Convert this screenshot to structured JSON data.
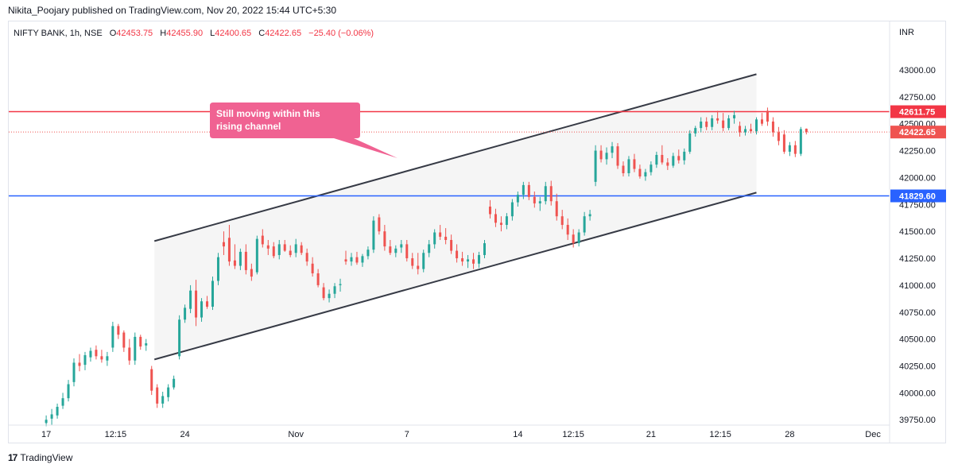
{
  "header": {
    "publish_line": "Nikita_Poojary published on TradingView.com, Nov 20, 2022 15:44 UTC+5:30"
  },
  "legend": {
    "symbol": "NIFTY BANK, 1h, NSE",
    "open_label": "O",
    "open": "42453.75",
    "high_label": "H",
    "high": "42455.90",
    "low_label": "L",
    "low": "42400.65",
    "close_label": "C",
    "close": "42422.65",
    "change": "−25.40 (−0.06%)"
  },
  "footer": {
    "brand": "TradingView",
    "logo_glyph": "17"
  },
  "annotation": {
    "text_lines": [
      "Still moving within this",
      "rising channel"
    ],
    "color": "#f06292"
  },
  "colors": {
    "up": "#26a69a",
    "down": "#ef5350",
    "red_level": "#f23645",
    "blue_level": "#2962ff",
    "channel": "#363a45",
    "channel_fill": "#f5f5f5"
  },
  "chart_data": {
    "type": "candlestick",
    "currency": "INR",
    "y_ticks": [
      43000,
      42750,
      42500,
      42250,
      42000,
      41750,
      41500,
      41250,
      41000,
      40750,
      40500,
      40250,
      40000,
      39750
    ],
    "y_tick_labels": [
      "43000.00",
      "42750.00",
      "42500.00",
      "42250.00",
      "42000.00",
      "41750.00",
      "41500.00",
      "41250.00",
      "41000.00",
      "40750.00",
      "40500.00",
      "40250.00",
      "40000.00",
      "39750.00"
    ],
    "ylim": [
      39700,
      43450
    ],
    "x_ticks": [
      {
        "label": "17",
        "t": 6
      },
      {
        "label": "12:15",
        "t": 31
      },
      {
        "label": "24",
        "t": 56
      },
      {
        "label": "Nov",
        "t": 96
      },
      {
        "label": "7",
        "t": 136
      },
      {
        "label": "14",
        "t": 176
      },
      {
        "label": "12:15",
        "t": 196
      },
      {
        "label": "21",
        "t": 224
      },
      {
        "label": "12:15",
        "t": 249
      },
      {
        "label": "28",
        "t": 274
      },
      {
        "label": "Dec",
        "t": 304
      }
    ],
    "xlim": [
      -7.5,
      310
    ],
    "horizontal_levels": [
      {
        "value": 42611.75,
        "label": "42611.75",
        "color": "red"
      },
      {
        "value": 41829.6,
        "label": "41829.60",
        "color": "blue"
      }
    ],
    "last_price": {
      "value": 42422.65,
      "label": "42422.65"
    },
    "channel": {
      "upper": [
        {
          "t": 45,
          "v": 41410
        },
        {
          "t": 262,
          "v": 42960
        }
      ],
      "lower": [
        {
          "t": 45,
          "v": 40310
        },
        {
          "t": 262,
          "v": 41860
        }
      ]
    },
    "candles": [
      {
        "t": 6,
        "o": 39720,
        "h": 39790,
        "l": 39690,
        "c": 39750
      },
      {
        "t": 8,
        "o": 39760,
        "h": 39850,
        "l": 39700,
        "c": 39800
      },
      {
        "t": 10,
        "o": 39790,
        "h": 39900,
        "l": 39760,
        "c": 39870
      },
      {
        "t": 12,
        "o": 39880,
        "h": 40000,
        "l": 39850,
        "c": 39950
      },
      {
        "t": 14,
        "o": 39950,
        "h": 40120,
        "l": 39920,
        "c": 40080
      },
      {
        "t": 16,
        "o": 40100,
        "h": 40320,
        "l": 40060,
        "c": 40280
      },
      {
        "t": 18,
        "o": 40280,
        "h": 40360,
        "l": 40200,
        "c": 40250
      },
      {
        "t": 20,
        "o": 40260,
        "h": 40380,
        "l": 40210,
        "c": 40350
      },
      {
        "t": 22,
        "o": 40330,
        "h": 40420,
        "l": 40290,
        "c": 40390
      },
      {
        "t": 24,
        "o": 40400,
        "h": 40440,
        "l": 40310,
        "c": 40340
      },
      {
        "t": 26,
        "o": 40340,
        "h": 40400,
        "l": 40280,
        "c": 40310
      },
      {
        "t": 28,
        "o": 40300,
        "h": 40380,
        "l": 40250,
        "c": 40340
      },
      {
        "t": 30,
        "o": 40420,
        "h": 40660,
        "l": 40380,
        "c": 40620
      },
      {
        "t": 32,
        "o": 40620,
        "h": 40640,
        "l": 40500,
        "c": 40540
      },
      {
        "t": 34,
        "o": 40560,
        "h": 40580,
        "l": 40380,
        "c": 40420
      },
      {
        "t": 36,
        "o": 40420,
        "h": 40500,
        "l": 40260,
        "c": 40300
      },
      {
        "t": 38,
        "o": 40300,
        "h": 40560,
        "l": 40260,
        "c": 40520
      },
      {
        "t": 40,
        "o": 40520,
        "h": 40540,
        "l": 40400,
        "c": 40430
      },
      {
        "t": 42,
        "o": 40440,
        "h": 40500,
        "l": 40390,
        "c": 40460
      },
      {
        "t": 44,
        "o": 40220,
        "h": 40250,
        "l": 39980,
        "c": 40020
      },
      {
        "t": 46,
        "o": 40050,
        "h": 40080,
        "l": 39860,
        "c": 39900
      },
      {
        "t": 48,
        "o": 39900,
        "h": 40010,
        "l": 39860,
        "c": 39970
      },
      {
        "t": 50,
        "o": 39960,
        "h": 40080,
        "l": 39920,
        "c": 40050
      },
      {
        "t": 52,
        "o": 40050,
        "h": 40160,
        "l": 40030,
        "c": 40130
      },
      {
        "t": 54,
        "o": 40340,
        "h": 40720,
        "l": 40310,
        "c": 40680
      },
      {
        "t": 56,
        "o": 40680,
        "h": 40820,
        "l": 40650,
        "c": 40790
      },
      {
        "t": 58,
        "o": 40780,
        "h": 41000,
        "l": 40740,
        "c": 40950
      },
      {
        "t": 60,
        "o": 40950,
        "h": 41050,
        "l": 40620,
        "c": 40700
      },
      {
        "t": 62,
        "o": 40700,
        "h": 40880,
        "l": 40660,
        "c": 40850
      },
      {
        "t": 64,
        "o": 40850,
        "h": 40900,
        "l": 40780,
        "c": 40800
      },
      {
        "t": 66,
        "o": 40800,
        "h": 41080,
        "l": 40770,
        "c": 41040
      },
      {
        "t": 68,
        "o": 41040,
        "h": 41300,
        "l": 41000,
        "c": 41260
      },
      {
        "t": 70,
        "o": 41400,
        "h": 41500,
        "l": 41280,
        "c": 41360
      },
      {
        "t": 72,
        "o": 41440,
        "h": 41560,
        "l": 41180,
        "c": 41220
      },
      {
        "t": 74,
        "o": 41230,
        "h": 41380,
        "l": 41150,
        "c": 41180
      },
      {
        "t": 76,
        "o": 41180,
        "h": 41340,
        "l": 41140,
        "c": 41310
      },
      {
        "t": 78,
        "o": 41310,
        "h": 41380,
        "l": 41100,
        "c": 41140
      },
      {
        "t": 80,
        "o": 41150,
        "h": 41200,
        "l": 41040,
        "c": 41080
      },
      {
        "t": 82,
        "o": 41120,
        "h": 41460,
        "l": 41100,
        "c": 41430
      },
      {
        "t": 84,
        "o": 41460,
        "h": 41520,
        "l": 41350,
        "c": 41380
      },
      {
        "t": 86,
        "o": 41370,
        "h": 41420,
        "l": 41280,
        "c": 41340
      },
      {
        "t": 88,
        "o": 41360,
        "h": 41400,
        "l": 41250,
        "c": 41270
      },
      {
        "t": 90,
        "o": 41280,
        "h": 41420,
        "l": 41240,
        "c": 41380
      },
      {
        "t": 92,
        "o": 41380,
        "h": 41420,
        "l": 41310,
        "c": 41320
      },
      {
        "t": 94,
        "o": 41320,
        "h": 41370,
        "l": 41260,
        "c": 41280
      },
      {
        "t": 96,
        "o": 41300,
        "h": 41430,
        "l": 41260,
        "c": 41380
      },
      {
        "t": 98,
        "o": 41370,
        "h": 41400,
        "l": 41280,
        "c": 41300
      },
      {
        "t": 100,
        "o": 41300,
        "h": 41340,
        "l": 41180,
        "c": 41220
      },
      {
        "t": 102,
        "o": 41200,
        "h": 41260,
        "l": 41080,
        "c": 41110
      },
      {
        "t": 104,
        "o": 41110,
        "h": 41150,
        "l": 40980,
        "c": 41000
      },
      {
        "t": 106,
        "o": 40980,
        "h": 41020,
        "l": 40860,
        "c": 40880
      },
      {
        "t": 108,
        "o": 40880,
        "h": 40960,
        "l": 40840,
        "c": 40920
      },
      {
        "t": 110,
        "o": 40920,
        "h": 41020,
        "l": 40880,
        "c": 40990
      },
      {
        "t": 112,
        "o": 41000,
        "h": 41060,
        "l": 40940,
        "c": 41010
      },
      {
        "t": 114,
        "o": 41240,
        "h": 41320,
        "l": 41190,
        "c": 41220
      },
      {
        "t": 116,
        "o": 41220,
        "h": 41300,
        "l": 41180,
        "c": 41260
      },
      {
        "t": 118,
        "o": 41260,
        "h": 41310,
        "l": 41190,
        "c": 41210
      },
      {
        "t": 120,
        "o": 41210,
        "h": 41290,
        "l": 41170,
        "c": 41270
      },
      {
        "t": 122,
        "o": 41270,
        "h": 41360,
        "l": 41240,
        "c": 41330
      },
      {
        "t": 124,
        "o": 41330,
        "h": 41640,
        "l": 41300,
        "c": 41600
      },
      {
        "t": 126,
        "o": 41630,
        "h": 41660,
        "l": 41470,
        "c": 41500
      },
      {
        "t": 128,
        "o": 41500,
        "h": 41560,
        "l": 41320,
        "c": 41360
      },
      {
        "t": 130,
        "o": 41360,
        "h": 41420,
        "l": 41280,
        "c": 41300
      },
      {
        "t": 132,
        "o": 41300,
        "h": 41370,
        "l": 41260,
        "c": 41340
      },
      {
        "t": 134,
        "o": 41350,
        "h": 41420,
        "l": 41300,
        "c": 41380
      },
      {
        "t": 136,
        "o": 41380,
        "h": 41420,
        "l": 41220,
        "c": 41250
      },
      {
        "t": 138,
        "o": 41250,
        "h": 41300,
        "l": 41150,
        "c": 41180
      },
      {
        "t": 140,
        "o": 41180,
        "h": 41300,
        "l": 41100,
        "c": 41150
      },
      {
        "t": 142,
        "o": 41150,
        "h": 41330,
        "l": 41120,
        "c": 41300
      },
      {
        "t": 144,
        "o": 41300,
        "h": 41420,
        "l": 41260,
        "c": 41380
      },
      {
        "t": 146,
        "o": 41380,
        "h": 41520,
        "l": 41340,
        "c": 41490
      },
      {
        "t": 148,
        "o": 41490,
        "h": 41560,
        "l": 41420,
        "c": 41450
      },
      {
        "t": 150,
        "o": 41450,
        "h": 41530,
        "l": 41380,
        "c": 41420
      },
      {
        "t": 152,
        "o": 41420,
        "h": 41470,
        "l": 41290,
        "c": 41320
      },
      {
        "t": 154,
        "o": 41320,
        "h": 41380,
        "l": 41210,
        "c": 41250
      },
      {
        "t": 156,
        "o": 41250,
        "h": 41310,
        "l": 41180,
        "c": 41220
      },
      {
        "t": 158,
        "o": 41220,
        "h": 41280,
        "l": 41160,
        "c": 41240
      },
      {
        "t": 160,
        "o": 41240,
        "h": 41300,
        "l": 41150,
        "c": 41200
      },
      {
        "t": 162,
        "o": 41200,
        "h": 41310,
        "l": 41160,
        "c": 41280
      },
      {
        "t": 164,
        "o": 41280,
        "h": 41420,
        "l": 41250,
        "c": 41390
      },
      {
        "t": 166,
        "o": 41730,
        "h": 41790,
        "l": 41620,
        "c": 41660
      },
      {
        "t": 168,
        "o": 41660,
        "h": 41710,
        "l": 41540,
        "c": 41580
      },
      {
        "t": 170,
        "o": 41580,
        "h": 41640,
        "l": 41500,
        "c": 41560
      },
      {
        "t": 172,
        "o": 41560,
        "h": 41670,
        "l": 41520,
        "c": 41640
      },
      {
        "t": 174,
        "o": 41640,
        "h": 41800,
        "l": 41600,
        "c": 41770
      },
      {
        "t": 176,
        "o": 41770,
        "h": 41870,
        "l": 41730,
        "c": 41840
      },
      {
        "t": 178,
        "o": 41840,
        "h": 41960,
        "l": 41800,
        "c": 41930
      },
      {
        "t": 180,
        "o": 41930,
        "h": 41960,
        "l": 41790,
        "c": 41820
      },
      {
        "t": 182,
        "o": 41820,
        "h": 41870,
        "l": 41720,
        "c": 41760
      },
      {
        "t": 184,
        "o": 41760,
        "h": 41820,
        "l": 41690,
        "c": 41780
      },
      {
        "t": 186,
        "o": 41780,
        "h": 41960,
        "l": 41750,
        "c": 41920
      },
      {
        "t": 188,
        "o": 41920,
        "h": 41970,
        "l": 41740,
        "c": 41780
      },
      {
        "t": 190,
        "o": 41780,
        "h": 41850,
        "l": 41600,
        "c": 41640
      },
      {
        "t": 192,
        "o": 41640,
        "h": 41700,
        "l": 41520,
        "c": 41560
      },
      {
        "t": 194,
        "o": 41560,
        "h": 41620,
        "l": 41420,
        "c": 41470
      },
      {
        "t": 196,
        "o": 41470,
        "h": 41520,
        "l": 41350,
        "c": 41390
      },
      {
        "t": 198,
        "o": 41390,
        "h": 41520,
        "l": 41360,
        "c": 41490
      },
      {
        "t": 200,
        "o": 41490,
        "h": 41680,
        "l": 41460,
        "c": 41640
      },
      {
        "t": 202,
        "o": 41640,
        "h": 41700,
        "l": 41600,
        "c": 41660
      },
      {
        "t": 204,
        "o": 41960,
        "h": 42300,
        "l": 41920,
        "c": 42250
      },
      {
        "t": 206,
        "o": 42250,
        "h": 42300,
        "l": 42140,
        "c": 42170
      },
      {
        "t": 208,
        "o": 42170,
        "h": 42280,
        "l": 42120,
        "c": 42230
      },
      {
        "t": 210,
        "o": 42230,
        "h": 42330,
        "l": 42180,
        "c": 42290
      },
      {
        "t": 212,
        "o": 42290,
        "h": 42320,
        "l": 42080,
        "c": 42110
      },
      {
        "t": 214,
        "o": 42110,
        "h": 42150,
        "l": 42010,
        "c": 42040
      },
      {
        "t": 216,
        "o": 42040,
        "h": 42200,
        "l": 42010,
        "c": 42170
      },
      {
        "t": 218,
        "o": 42170,
        "h": 42220,
        "l": 42050,
        "c": 42080
      },
      {
        "t": 220,
        "o": 42080,
        "h": 42120,
        "l": 41990,
        "c": 42010
      },
      {
        "t": 222,
        "o": 42010,
        "h": 42080,
        "l": 41970,
        "c": 42050
      },
      {
        "t": 224,
        "o": 42050,
        "h": 42150,
        "l": 42020,
        "c": 42120
      },
      {
        "t": 226,
        "o": 42120,
        "h": 42240,
        "l": 42090,
        "c": 42210
      },
      {
        "t": 228,
        "o": 42210,
        "h": 42300,
        "l": 42120,
        "c": 42140
      },
      {
        "t": 230,
        "o": 42140,
        "h": 42180,
        "l": 42070,
        "c": 42110
      },
      {
        "t": 232,
        "o": 42110,
        "h": 42230,
        "l": 42090,
        "c": 42200
      },
      {
        "t": 234,
        "o": 42200,
        "h": 42260,
        "l": 42130,
        "c": 42160
      },
      {
        "t": 236,
        "o": 42160,
        "h": 42270,
        "l": 42120,
        "c": 42240
      },
      {
        "t": 238,
        "o": 42240,
        "h": 42440,
        "l": 42220,
        "c": 42410
      },
      {
        "t": 240,
        "o": 42410,
        "h": 42480,
        "l": 42380,
        "c": 42460
      },
      {
        "t": 242,
        "o": 42460,
        "h": 42560,
        "l": 42420,
        "c": 42520
      },
      {
        "t": 244,
        "o": 42520,
        "h": 42560,
        "l": 42440,
        "c": 42470
      },
      {
        "t": 246,
        "o": 42470,
        "h": 42580,
        "l": 42440,
        "c": 42550
      },
      {
        "t": 248,
        "o": 42550,
        "h": 42620,
        "l": 42500,
        "c": 42530
      },
      {
        "t": 250,
        "o": 42530,
        "h": 42600,
        "l": 42430,
        "c": 42460
      },
      {
        "t": 252,
        "o": 42460,
        "h": 42580,
        "l": 42440,
        "c": 42550
      },
      {
        "t": 254,
        "o": 42550,
        "h": 42620,
        "l": 42500,
        "c": 42580
      },
      {
        "t": 256,
        "o": 42480,
        "h": 42520,
        "l": 42380,
        "c": 42420
      },
      {
        "t": 258,
        "o": 42420,
        "h": 42480,
        "l": 42390,
        "c": 42450
      },
      {
        "t": 260,
        "o": 42450,
        "h": 42500,
        "l": 42410,
        "c": 42430
      },
      {
        "t": 262,
        "o": 42430,
        "h": 42560,
        "l": 42400,
        "c": 42540
      },
      {
        "t": 264,
        "o": 42540,
        "h": 42600,
        "l": 42480,
        "c": 42500
      },
      {
        "t": 266,
        "o": 42620,
        "h": 42650,
        "l": 42480,
        "c": 42520
      },
      {
        "t": 268,
        "o": 42520,
        "h": 42560,
        "l": 42380,
        "c": 42420
      },
      {
        "t": 270,
        "o": 42420,
        "h": 42470,
        "l": 42300,
        "c": 42340
      },
      {
        "t": 272,
        "o": 42400,
        "h": 42440,
        "l": 42220,
        "c": 42240
      },
      {
        "t": 274,
        "o": 42240,
        "h": 42330,
        "l": 42200,
        "c": 42300
      },
      {
        "t": 276,
        "o": 42300,
        "h": 42340,
        "l": 42190,
        "c": 42220
      },
      {
        "t": 278,
        "o": 42220,
        "h": 42470,
        "l": 42200,
        "c": 42450
      },
      {
        "t": 280,
        "o": 42453.75,
        "h": 42455.9,
        "l": 42400.65,
        "c": 42422.65
      }
    ]
  }
}
